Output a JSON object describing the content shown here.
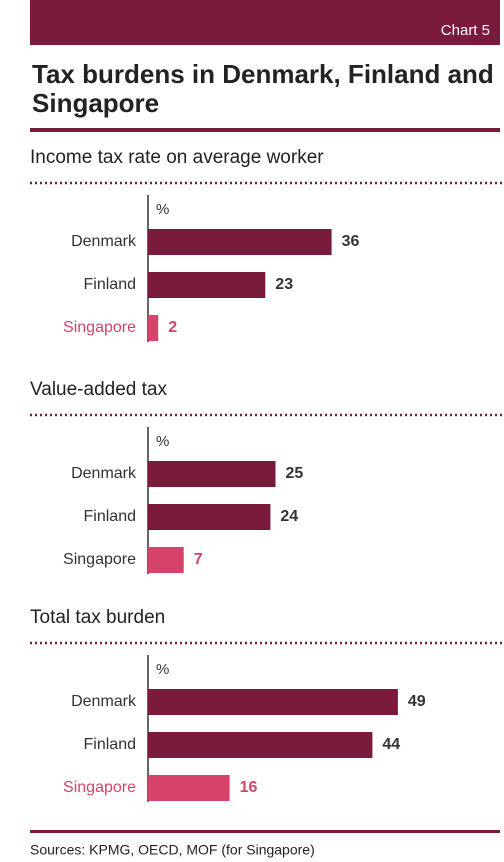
{
  "header": {
    "tag": "Chart 5",
    "title": "Tax burdens in Denmark, Finland and Singapore"
  },
  "chart_data": [
    {
      "type": "bar",
      "subtitle": "Income tax rate on average worker",
      "unit": "%",
      "categories": [
        "Denmark",
        "Finland",
        "Singapore"
      ],
      "values": [
        36,
        23,
        2
      ],
      "bar_colors": [
        "#7a1a3c",
        "#7a1a3c",
        "#d6426a"
      ],
      "label_colors": [
        "#333333",
        "#333333",
        "#d6426a"
      ],
      "value_colors": [
        "#333333",
        "#333333",
        "#d6426a"
      ]
    },
    {
      "type": "bar",
      "subtitle": "Value-added tax",
      "unit": "%",
      "categories": [
        "Denmark",
        "Finland",
        "Singapore"
      ],
      "values": [
        25,
        24,
        7
      ],
      "bar_colors": [
        "#7a1a3c",
        "#7a1a3c",
        "#d6426a"
      ],
      "label_colors": [
        "#333333",
        "#333333",
        "#333333"
      ],
      "value_colors": [
        "#333333",
        "#333333",
        "#d6426a"
      ]
    },
    {
      "type": "bar",
      "subtitle": "Total tax burden",
      "unit": "%",
      "categories": [
        "Denmark",
        "Finland",
        "Singapore"
      ],
      "values": [
        49,
        44,
        16
      ],
      "bar_colors": [
        "#7a1a3c",
        "#7a1a3c",
        "#d6426a"
      ],
      "label_colors": [
        "#333333",
        "#333333",
        "#d6426a"
      ],
      "value_colors": [
        "#333333",
        "#333333",
        "#d6426a"
      ]
    }
  ],
  "footer": {
    "source": "Sources: KPMG, OECD, MOF (for Singapore)"
  }
}
